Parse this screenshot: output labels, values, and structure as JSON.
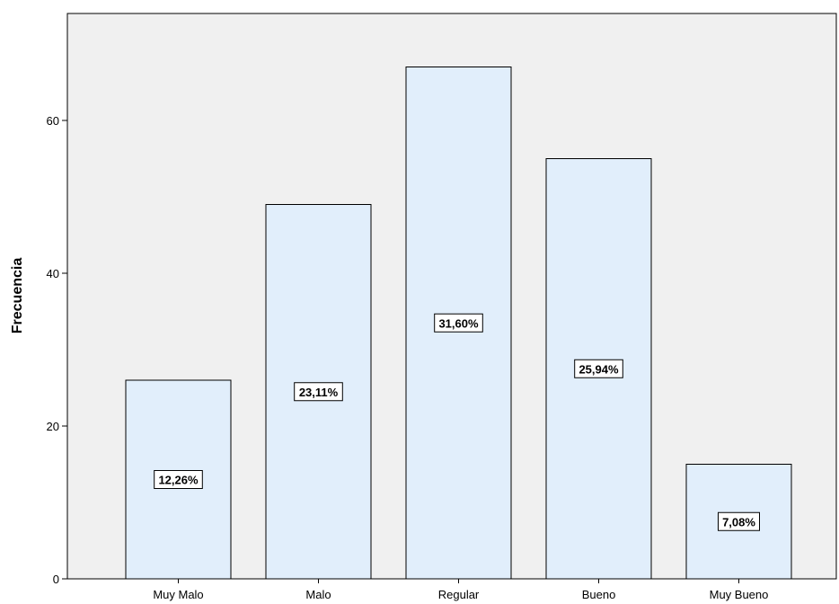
{
  "chart_data": {
    "type": "bar",
    "categories": [
      "Muy Malo",
      "Malo",
      "Regular",
      "Bueno",
      "Muy Bueno"
    ],
    "values": [
      26,
      49,
      67,
      55,
      15
    ],
    "data_labels": [
      "12,26%",
      "23,11%",
      "31,60%",
      "25,94%",
      "7,08%"
    ],
    "ylabel": "Frecuencia",
    "xlabel": "",
    "yticks": [
      0,
      20,
      40,
      60
    ],
    "ylim": [
      0,
      74
    ],
    "grid": false,
    "colors": {
      "plot_background": "#f0f0f0",
      "bar_fill": "#e1eefb",
      "bar_stroke": "#000000"
    }
  }
}
